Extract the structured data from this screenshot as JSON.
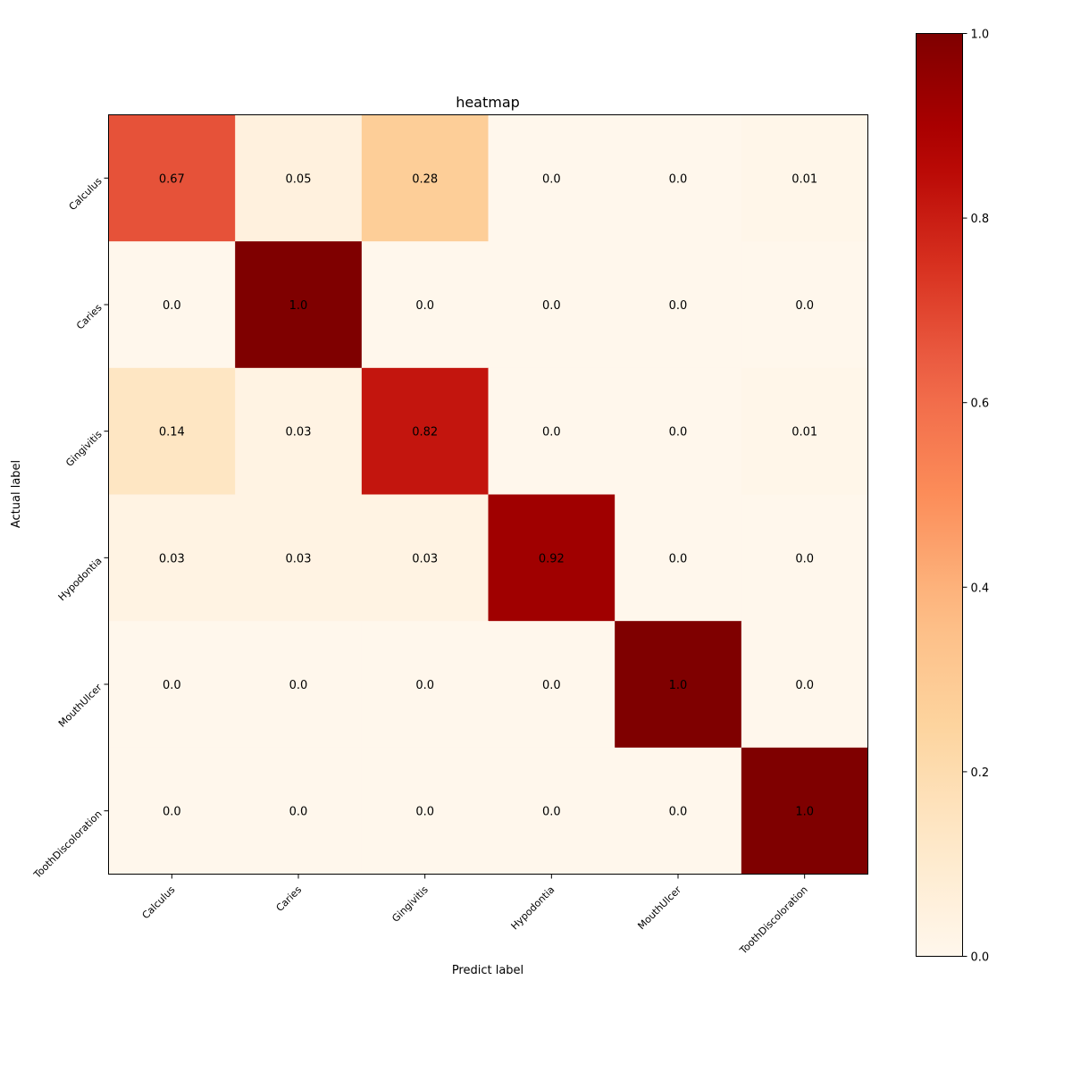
{
  "chart_data": {
    "type": "heatmap",
    "title": "heatmap",
    "xlabel": "Predict label",
    "ylabel": "Actual label",
    "x_categories": [
      "Calculus",
      "Caries",
      "Gingivitis",
      "Hypodontia",
      "MouthUlcer",
      "ToothDiscoloration"
    ],
    "y_categories": [
      "Calculus",
      "Caries",
      "Gingivitis",
      "Hypodontia",
      "MouthUlcer",
      "ToothDiscoloration"
    ],
    "values": [
      [
        0.67,
        0.05,
        0.28,
        0.0,
        0.0,
        0.01
      ],
      [
        0.0,
        1.0,
        0.0,
        0.0,
        0.0,
        0.0
      ],
      [
        0.14,
        0.03,
        0.82,
        0.0,
        0.0,
        0.01
      ],
      [
        0.03,
        0.03,
        0.03,
        0.92,
        0.0,
        0.0
      ],
      [
        0.0,
        0.0,
        0.0,
        0.0,
        1.0,
        0.0
      ],
      [
        0.0,
        0.0,
        0.0,
        0.0,
        0.0,
        1.0
      ]
    ],
    "value_labels": [
      [
        "0.67",
        "0.05",
        "0.28",
        "0.0",
        "0.0",
        "0.01"
      ],
      [
        "0.0",
        "1.0",
        "0.0",
        "0.0",
        "0.0",
        "0.0"
      ],
      [
        "0.14",
        "0.03",
        "0.82",
        "0.0",
        "0.0",
        "0.01"
      ],
      [
        "0.03",
        "0.03",
        "0.03",
        "0.92",
        "0.0",
        "0.0"
      ],
      [
        "0.0",
        "0.0",
        "0.0",
        "0.0",
        "1.0",
        "0.0"
      ],
      [
        "0.0",
        "0.0",
        "0.0",
        "0.0",
        "0.0",
        "1.0"
      ]
    ],
    "colormap": "OrRd",
    "vmin": 0.0,
    "vmax": 1.0,
    "colorbar": {
      "ticks": [
        0.0,
        0.2,
        0.4,
        0.6,
        0.8,
        1.0
      ],
      "tick_labels": [
        "0.0",
        "0.2",
        "0.4",
        "0.6",
        "0.8",
        "1.0"
      ]
    },
    "grid": false,
    "legend": "colorbar-right"
  }
}
